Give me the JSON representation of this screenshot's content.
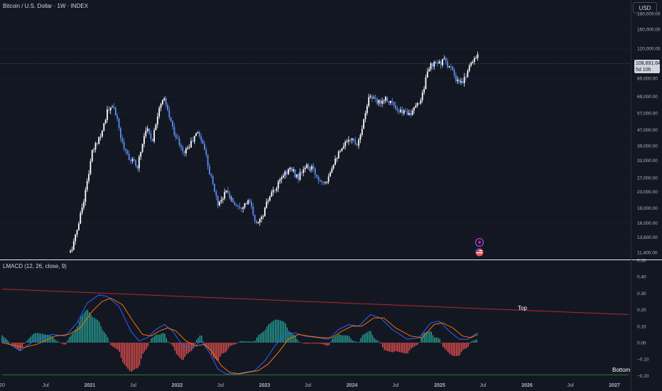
{
  "header": {
    "symbol_title": "Bitcoin / U.S. Dollar · 1W · INDEX",
    "indicator_title": "LMACD (12, 26, close, 9)"
  },
  "toolbar": {
    "currency_label": "USD"
  },
  "last_price": {
    "value": "108,891.64",
    "countdown": "5d 10h"
  },
  "annotations": {
    "top_label": "Top",
    "bottom_label": "Bottom"
  },
  "colors": {
    "background": "#131722",
    "up_candle": "#ffffff",
    "down_candle": "#5b8def",
    "macd_line": "#2962ff",
    "signal_line": "#ff6d00",
    "hist_up": "#26a69a",
    "hist_down": "#ef5350",
    "top_line": "#b22833",
    "bottom_line": "#2e7d32"
  },
  "icons": {
    "flash": "lightning-icon",
    "flag": "us-flag-icon"
  },
  "chart_data": [
    {
      "type": "candlestick",
      "title": "Bitcoin / U.S. Dollar · 1W · INDEX",
      "y_scale": "log",
      "ylim": [
        10500,
        210000
      ],
      "y_ticks": [
        "180,000.00",
        "150,000.00",
        "120,000.00",
        "85,000.00",
        "69,000.00",
        "57,000.00",
        "47,000.00",
        "39,000.00",
        "33,000.00",
        "27,000.00",
        "23,000.00",
        "19,000.00",
        "16,000.00",
        "13,600.00",
        "11,400.00"
      ],
      "y_tick_values": [
        180000,
        150000,
        120000,
        85000,
        69000,
        57000,
        47000,
        39000,
        33000,
        27000,
        23000,
        19000,
        16000,
        13600,
        11400
      ],
      "x_ticks": [
        "20",
        "Jul",
        "2021",
        "Jul",
        "2022",
        "Jul",
        "2023",
        "Jul",
        "2024",
        "Jul",
        "2025",
        "Jul",
        "2026",
        "Jul",
        "2027"
      ],
      "x_tick_dates": [
        "2020-01-01",
        "2020-07-01",
        "2021-01-01",
        "2021-07-01",
        "2022-01-01",
        "2022-07-01",
        "2023-01-01",
        "2023-07-01",
        "2024-01-01",
        "2024-07-01",
        "2025-01-01",
        "2025-07-01",
        "2026-01-01",
        "2026-07-01",
        "2027-01-01"
      ],
      "xlim": [
        "2020-01-01",
        "2027-03-01"
      ],
      "close_path": [
        [
          "2020-10-12",
          11400
        ],
        [
          "2020-11-02",
          13600
        ],
        [
          "2020-12-14",
          23000
        ],
        [
          "2021-01-11",
          36000
        ],
        [
          "2021-02-22",
          47000
        ],
        [
          "2021-03-15",
          58000
        ],
        [
          "2021-04-12",
          61000
        ],
        [
          "2021-05-17",
          40000
        ],
        [
          "2021-06-21",
          33000
        ],
        [
          "2021-07-19",
          31000
        ],
        [
          "2021-08-23",
          48000
        ],
        [
          "2021-09-20",
          42000
        ],
        [
          "2021-10-18",
          62000
        ],
        [
          "2021-11-08",
          66000
        ],
        [
          "2021-12-13",
          48000
        ],
        [
          "2022-01-24",
          36000
        ],
        [
          "2022-02-21",
          39000
        ],
        [
          "2022-03-28",
          46000
        ],
        [
          "2022-04-25",
          38000
        ],
        [
          "2022-05-16",
          29000
        ],
        [
          "2022-06-20",
          20000
        ],
        [
          "2022-07-25",
          23000
        ],
        [
          "2022-08-29",
          20000
        ],
        [
          "2022-09-26",
          19500
        ],
        [
          "2022-10-31",
          20500
        ],
        [
          "2022-11-21",
          16000
        ],
        [
          "2022-12-19",
          16800
        ],
        [
          "2023-01-16",
          21000
        ],
        [
          "2023-02-20",
          24000
        ],
        [
          "2023-03-20",
          28000
        ],
        [
          "2023-04-17",
          30000
        ],
        [
          "2023-05-22",
          27000
        ],
        [
          "2023-06-19",
          30500
        ],
        [
          "2023-07-17",
          30000
        ],
        [
          "2023-08-21",
          26000
        ],
        [
          "2023-09-18",
          26500
        ],
        [
          "2023-10-23",
          34000
        ],
        [
          "2023-11-20",
          37000
        ],
        [
          "2023-12-18",
          43000
        ],
        [
          "2024-01-22",
          40000
        ],
        [
          "2024-02-19",
          52000
        ],
        [
          "2024-03-11",
          70000
        ],
        [
          "2024-04-15",
          64000
        ],
        [
          "2024-05-20",
          68000
        ],
        [
          "2024-06-17",
          64000
        ],
        [
          "2024-07-08",
          57000
        ],
        [
          "2024-08-05",
          58000
        ],
        [
          "2024-09-09",
          57000
        ],
        [
          "2024-10-14",
          67000
        ],
        [
          "2024-11-18",
          97000
        ],
        [
          "2024-12-16",
          100000
        ],
        [
          "2025-01-20",
          104000
        ],
        [
          "2025-02-17",
          96000
        ],
        [
          "2025-03-10",
          82000
        ],
        [
          "2025-04-07",
          80000
        ],
        [
          "2025-04-28",
          94000
        ],
        [
          "2025-05-19",
          106000
        ],
        [
          "2025-06-09",
          108891
        ]
      ]
    },
    {
      "type": "line",
      "title": "LMACD (12, 26, close, 9)",
      "ylim": [
        -0.22,
        0.5
      ],
      "y_ticks": [
        "0.50",
        "0.40",
        "0.30",
        "0.20",
        "0.10",
        "0.00",
        "−0.10",
        "−0.20"
      ],
      "y_tick_values": [
        0.5,
        0.4,
        0.3,
        0.2,
        0.1,
        0.0,
        -0.1,
        -0.2
      ],
      "series": [
        {
          "name": "MACD",
          "points": [
            [
              "2020-01-01",
              0.02
            ],
            [
              "2020-03-16",
              -0.05
            ],
            [
              "2020-05-11",
              0.01
            ],
            [
              "2020-07-27",
              0.05
            ],
            [
              "2020-09-21",
              0.04
            ],
            [
              "2020-11-09",
              0.12
            ],
            [
              "2020-12-21",
              0.24
            ],
            [
              "2021-02-08",
              0.29
            ],
            [
              "2021-03-15",
              0.28
            ],
            [
              "2021-05-03",
              0.22
            ],
            [
              "2021-06-21",
              0.07
            ],
            [
              "2021-07-26",
              0.01
            ],
            [
              "2021-08-30",
              0.03
            ],
            [
              "2021-10-04",
              0.08
            ],
            [
              "2021-11-08",
              0.11
            ],
            [
              "2021-12-13",
              0.07
            ],
            [
              "2022-01-24",
              -0.02
            ],
            [
              "2022-03-07",
              -0.03
            ],
            [
              "2022-04-11",
              0.01
            ],
            [
              "2022-05-16",
              -0.06
            ],
            [
              "2022-06-20",
              -0.16
            ],
            [
              "2022-07-25",
              -0.19
            ],
            [
              "2022-09-05",
              -0.19
            ],
            [
              "2022-10-10",
              -0.18
            ],
            [
              "2022-11-21",
              -0.17
            ],
            [
              "2023-01-02",
              -0.11
            ],
            [
              "2023-02-13",
              -0.02
            ],
            [
              "2023-03-27",
              0.05
            ],
            [
              "2023-05-08",
              0.06
            ],
            [
              "2023-06-19",
              0.04
            ],
            [
              "2023-08-14",
              0.03
            ],
            [
              "2023-09-25",
              0.02
            ],
            [
              "2023-11-06",
              0.08
            ],
            [
              "2023-12-18",
              0.11
            ],
            [
              "2024-01-29",
              0.1
            ],
            [
              "2024-03-18",
              0.17
            ],
            [
              "2024-04-29",
              0.15
            ],
            [
              "2024-06-17",
              0.08
            ],
            [
              "2024-08-19",
              0.02
            ],
            [
              "2024-10-07",
              0.03
            ],
            [
              "2024-11-25",
              0.12
            ],
            [
              "2024-12-30",
              0.13
            ],
            [
              "2025-02-10",
              0.07
            ],
            [
              "2025-03-24",
              0.02
            ],
            [
              "2025-04-28",
              0.02
            ],
            [
              "2025-06-09",
              0.06
            ]
          ]
        },
        {
          "name": "Signal",
          "points": [
            [
              "2020-01-01",
              0.0
            ],
            [
              "2020-03-30",
              -0.03
            ],
            [
              "2020-05-25",
              -0.01
            ],
            [
              "2020-08-10",
              0.04
            ],
            [
              "2020-10-05",
              0.05
            ],
            [
              "2020-11-23",
              0.09
            ],
            [
              "2021-01-11",
              0.19
            ],
            [
              "2021-02-22",
              0.25
            ],
            [
              "2021-03-29",
              0.27
            ],
            [
              "2021-05-17",
              0.23
            ],
            [
              "2021-07-05",
              0.12
            ],
            [
              "2021-08-09",
              0.05
            ],
            [
              "2021-09-13",
              0.04
            ],
            [
              "2021-10-18",
              0.07
            ],
            [
              "2021-11-22",
              0.09
            ],
            [
              "2021-12-27",
              0.07
            ],
            [
              "2022-02-07",
              0.01
            ],
            [
              "2022-03-21",
              -0.02
            ],
            [
              "2022-04-25",
              -0.01
            ],
            [
              "2022-05-30",
              -0.06
            ],
            [
              "2022-07-04",
              -0.14
            ],
            [
              "2022-08-08",
              -0.18
            ],
            [
              "2022-09-19",
              -0.19
            ],
            [
              "2022-10-24",
              -0.18
            ],
            [
              "2022-12-05",
              -0.17
            ],
            [
              "2023-01-16",
              -0.13
            ],
            [
              "2023-02-27",
              -0.06
            ],
            [
              "2023-04-10",
              0.02
            ],
            [
              "2023-05-22",
              0.05
            ],
            [
              "2023-07-03",
              0.04
            ],
            [
              "2023-08-28",
              0.03
            ],
            [
              "2023-10-09",
              0.03
            ],
            [
              "2023-11-20",
              0.07
            ],
            [
              "2024-01-01",
              0.1
            ],
            [
              "2024-02-12",
              0.1
            ],
            [
              "2024-04-01",
              0.15
            ],
            [
              "2024-05-13",
              0.15
            ],
            [
              "2024-07-01",
              0.09
            ],
            [
              "2024-09-02",
              0.04
            ],
            [
              "2024-10-21",
              0.03
            ],
            [
              "2024-12-09",
              0.11
            ],
            [
              "2025-01-13",
              0.12
            ],
            [
              "2025-02-24",
              0.09
            ],
            [
              "2025-04-07",
              0.04
            ],
            [
              "2025-05-12",
              0.03
            ],
            [
              "2025-06-09",
              0.05
            ]
          ]
        }
      ],
      "trendlines": [
        {
          "label": "Top",
          "from": [
            "2020-01-01",
            0.325
          ],
          "to": [
            "2027-03-01",
            0.17
          ]
        },
        {
          "label": "Bottom",
          "from": [
            "2020-01-01",
            -0.195
          ],
          "to": [
            "2027-03-01",
            -0.195
          ]
        }
      ]
    }
  ]
}
